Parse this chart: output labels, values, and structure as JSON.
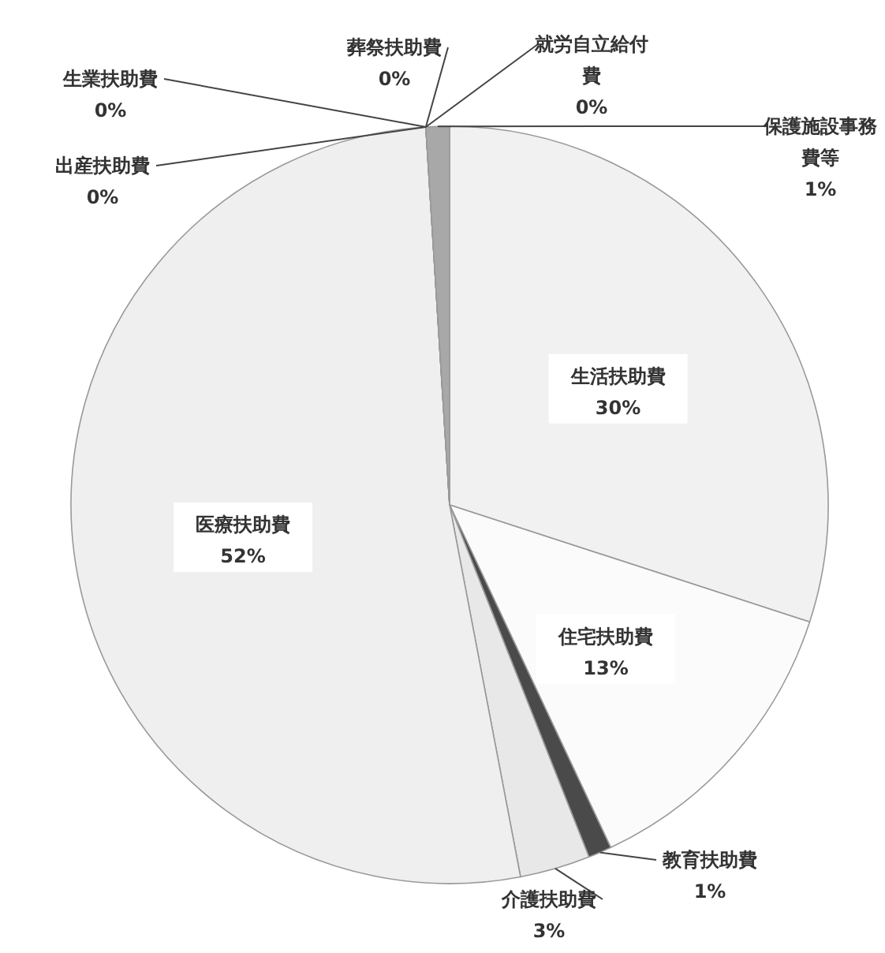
{
  "chart_data": {
    "type": "pie",
    "categories": [
      "生活扶助費",
      "住宅扶助費",
      "教育扶助費",
      "介護扶助費",
      "医療扶助費",
      "出産扶助費",
      "生業扶助費",
      "葬祭扶助費",
      "就労自立給付費",
      "保護施設事務費等"
    ],
    "values": [
      30,
      13,
      1,
      3,
      52,
      0,
      0,
      0,
      0,
      1
    ],
    "value_labels": [
      "30%",
      "13%",
      "1%",
      "3%",
      "52%",
      "0%",
      "0%",
      "0%",
      "0%",
      "1%"
    ],
    "colors": [
      "#f1f1f1",
      "#fbfbfb",
      "#4a4a4a",
      "#e8e8e8",
      "#efefef",
      "#cfcfcf",
      "#6a6a6a",
      "#888888",
      "#b0b0b0",
      "#a8a8a8"
    ]
  }
}
